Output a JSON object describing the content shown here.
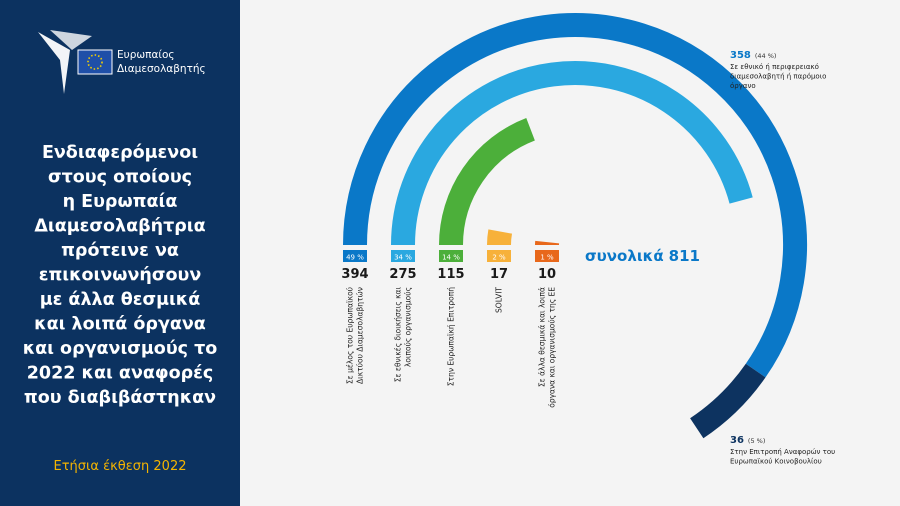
{
  "logo": [
    "Ευρωπαίος",
    "Διαμεσολαβητής"
  ],
  "chart_data": {
    "type": "radial-bar",
    "title": [
      "Ενδιαφερόμενοι",
      "στους οποίους",
      "η Ευρωπαία",
      "Διαμεσολαβήτρια",
      "πρότεινε να",
      "επικοινωνήσουν",
      "με άλλα θεσμικά",
      "και λοιπά όργανα",
      "και οργανισμούς το",
      "2022 και αναφορές",
      "που διαβιβάστηκαν"
    ],
    "footer": "Ετήσια έκθεση 2022",
    "categories": [
      [
        "Σε μέλος του Ευρωπαϊκού",
        "Δικτύου Διαμεσολαβητών"
      ],
      [
        "Σε εθνικές διοικήσεις και",
        "λοιπούς οργανισμούς"
      ],
      [
        "Στην Ευρωπαϊκή Επιτροπή"
      ],
      [
        "SOLVIT"
      ],
      [
        "Σε άλλα θεσμικά και λοιπά",
        "όργανα και οργανισμούς της ΕΕ"
      ]
    ],
    "values": [
      394,
      275,
      115,
      17,
      10
    ],
    "shares": [
      49,
      34,
      14,
      2,
      1
    ],
    "share_labels": [
      "49 %",
      "34 %",
      "14 %",
      "2 %",
      "1 %"
    ],
    "colors": [
      "#0a78c8",
      "#2aa8e0",
      "#4caf3a",
      "#f7b13a",
      "#e8681b"
    ],
    "breakdown": [
      {
        "value": 358,
        "share": 44,
        "share_label": "(44 %)",
        "color": "#0a78c8",
        "label": [
          "Σε εθνικό ή περιφερειακό",
          "διαμεσολαβητή ή παρόμοιο",
          "όργανο"
        ]
      },
      {
        "value": 36,
        "share": 5,
        "share_label": "(5 %)",
        "color": "#0d3360",
        "label": [
          "Στην Επιτροπή Αναφορών του",
          "Ευρωπαϊκού Κοινοβουλίου"
        ]
      }
    ],
    "total_text": "συνολικά",
    "total": 811
  }
}
